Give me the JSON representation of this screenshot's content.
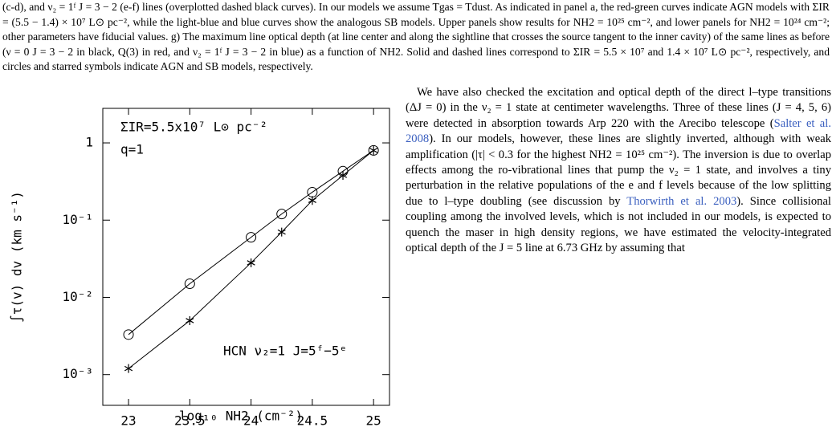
{
  "caption": "(c-d), and ν₂ = 1ᶠ J = 3 − 2 (e-f) lines (overplotted dashed black curves). In our models we assume Tgas = Tdust. As indicated in panel a, the red-green curves indicate AGN models with ΣIR = (5.5 − 1.4) × 10⁷ L⊙ pc⁻², while the light-blue and blue curves show the analogous SB models. Upper panels show results for NH2 = 10²⁵ cm⁻², and lower panels for NH2 = 10²⁴ cm⁻²; other parameters have fiducial values. g) The maximum line optical depth (at line center and along the sightline that crosses the source tangent to the inner cavity) of the same lines as before (ν = 0 J = 3 − 2 in black, Q(3) in red, and ν₂ = 1ᶠ J = 3 − 2 in blue) as a function of NH2. Solid and dashed lines correspond to ΣIR = 5.5 × 10⁷ and 1.4 × 10⁷ L⊙ pc⁻², respectively, and circles and starred symbols indicate AGN and SB models, respectively.",
  "chart_data": {
    "type": "line",
    "xlabel": "log₁₀ NH2 (cm⁻²)",
    "ylabel": "∫τ(v) dv (km s⁻¹)",
    "annotations": [
      "ΣIR=5.5x10⁷ L⊙ pc⁻²",
      "q=1",
      "HCN ν₂=1 J=5ᶠ−5ᵉ"
    ],
    "x": [
      23,
      23.5,
      24,
      24.25,
      24.5,
      24.75,
      25
    ],
    "series": [
      {
        "marker": "circle",
        "color": "#000000",
        "values": [
          0.0033,
          0.015,
          0.06,
          0.12,
          0.23,
          0.43,
          0.8
        ]
      },
      {
        "marker": "star",
        "color": "#000000",
        "values": [
          0.0012,
          0.005,
          0.028,
          0.07,
          0.18,
          0.38,
          0.8
        ]
      }
    ],
    "xlim": [
      22.79,
      25.13
    ],
    "xticks": [
      23,
      23.5,
      24,
      24.5,
      25
    ],
    "ylim": [
      0.0004,
      2.8
    ],
    "yscale": "log",
    "yticks": [
      {
        "value": 0.001,
        "label": "10⁻³"
      },
      {
        "value": 0.01,
        "label": "10⁻²"
      },
      {
        "value": 0.1,
        "label": "10⁻¹"
      },
      1
    ]
  },
  "body": {
    "segments": [
      {
        "text": "We have also checked the excitation and optical depth of the direct l–type transitions (ΔJ = 0) in the ν₂ = 1 state at centimeter wavelengths. Three of these lines (J = 4, 5, 6) were detected in absorption towards Arp 220 with the Arecibo telescope ("
      },
      {
        "text": "Salter et al. 2008",
        "link": true
      },
      {
        "text": "). In our models, however, these lines are slightly inverted, although with weak amplification (|τ| < 0.3 for the highest NH2 = 10²⁵ cm⁻²). The inversion is due to overlap effects among the ro-vibrational lines that pump the ν₂ = 1 state, and involves a tiny perturbation in the relative populations of the e and f levels because of the low splitting due to l–type doubling (see discussion by "
      },
      {
        "text": "Thorwirth et al. 2003",
        "link": true
      },
      {
        "text": "). Since collisional coupling among the involved levels, which is not included in our models, is expected to quench the maser in high density regions, we have estimated the velocity-integrated optical depth of the J = 5 line at 6.73 GHz by assuming that"
      }
    ]
  }
}
